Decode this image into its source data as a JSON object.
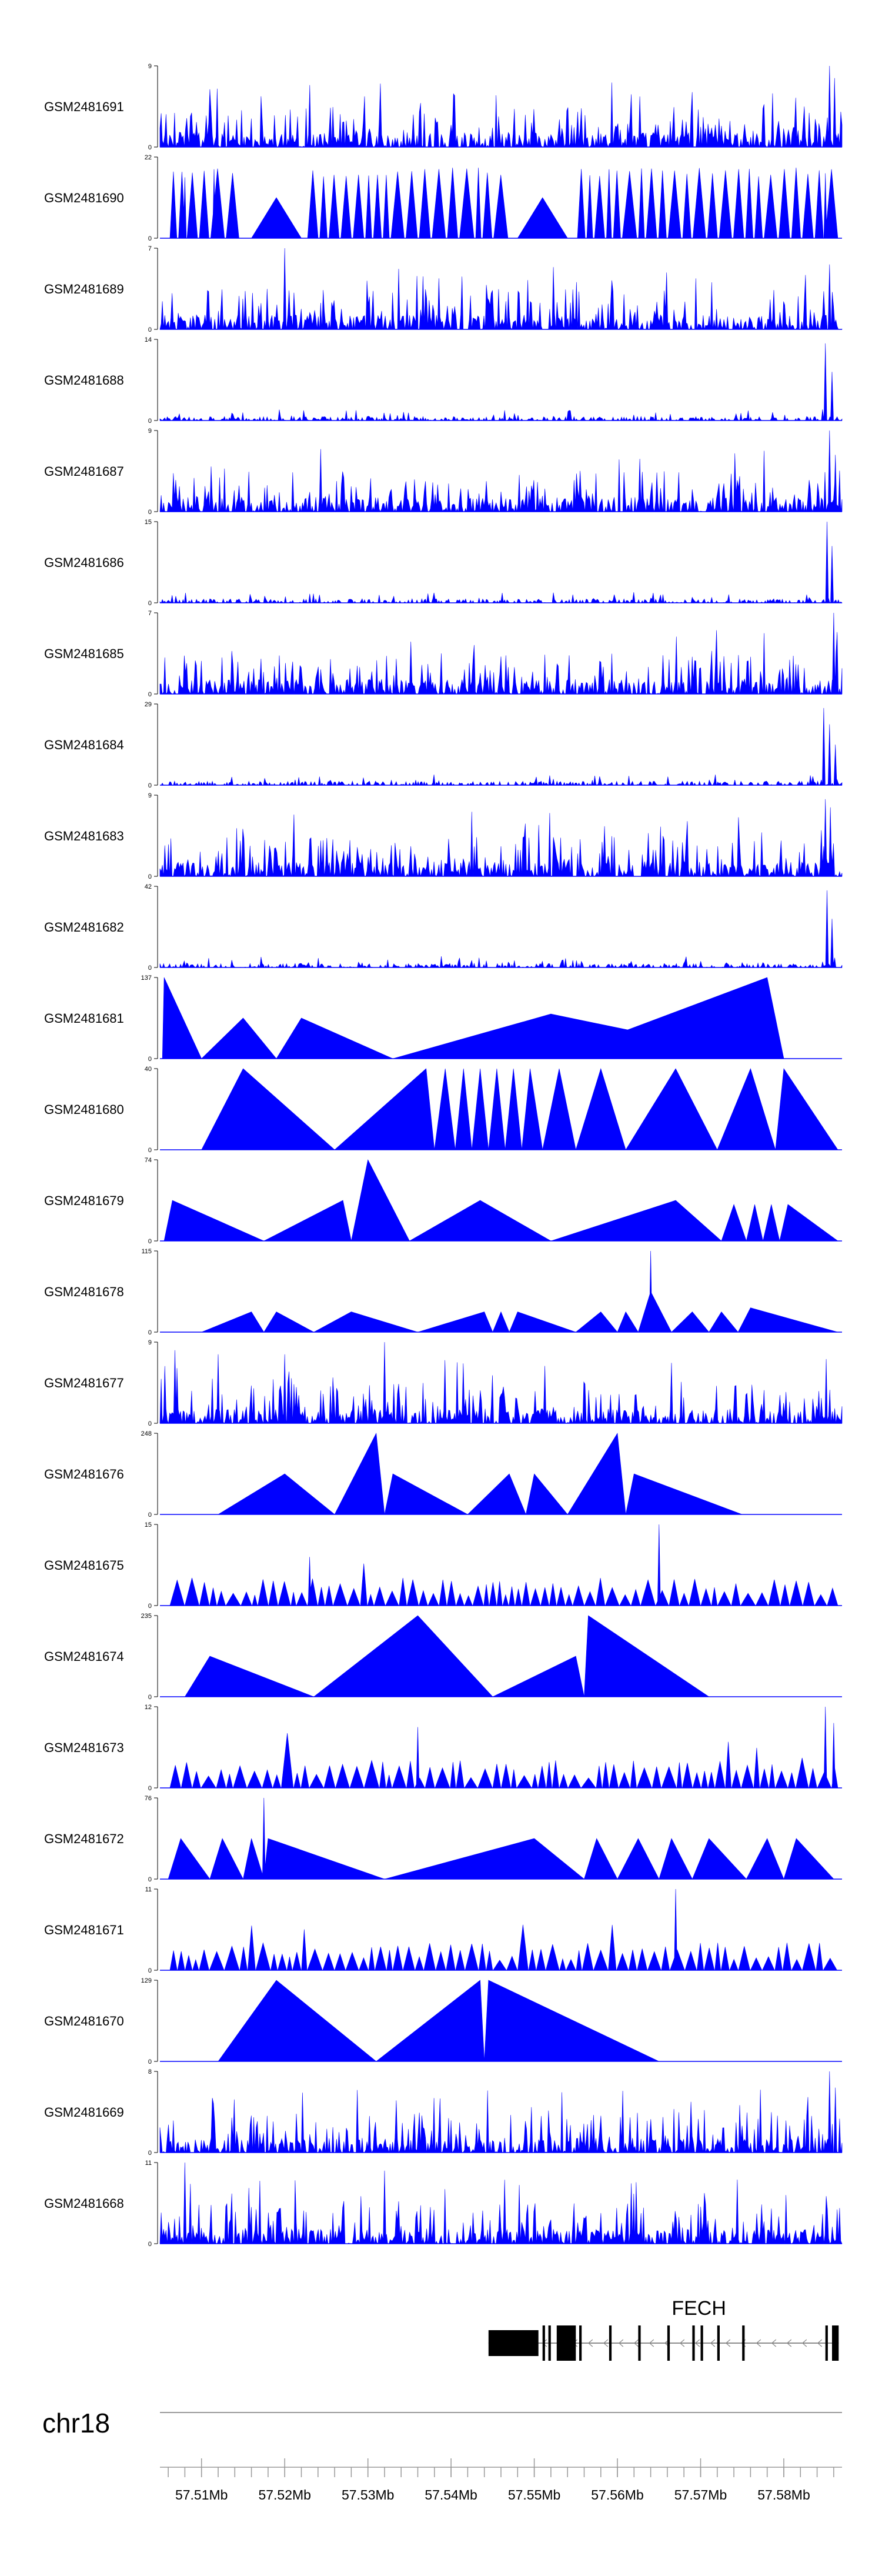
{
  "chart_data": {
    "type": "area",
    "x_unit": "Mb",
    "x_range": [
      57.505,
      57.587
    ],
    "fill_color": "#0000ff",
    "tracks": [
      {
        "name": "GSM2481691",
        "ymax": 9,
        "style": "dense",
        "seed": 11,
        "spikes": [
          [
            57.5855,
            1.0
          ],
          [
            57.5861,
            0.85
          ]
        ]
      },
      {
        "name": "GSM2481690",
        "ymax": 22,
        "style": "tri",
        "seed": 12,
        "spikes": [
          [
            57.508,
            0.75
          ],
          [
            57.5115,
            0.85
          ],
          [
            57.559,
            0.85
          ],
          [
            57.585,
            0.8
          ]
        ],
        "gaps": [
          [
            57.516,
            57.522
          ],
          [
            57.548,
            57.554
          ]
        ]
      },
      {
        "name": "GSM2481689",
        "ymax": 7,
        "style": "dense",
        "seed": 13,
        "spikes": [
          [
            57.52,
            1.0
          ],
          [
            57.5855,
            0.8
          ]
        ]
      },
      {
        "name": "GSM2481688",
        "ymax": 14,
        "style": "low",
        "seed": 14,
        "spikes": [
          [
            57.585,
            0.95
          ],
          [
            57.5858,
            0.6
          ]
        ]
      },
      {
        "name": "GSM2481687",
        "ymax": 9,
        "style": "dense",
        "seed": 15,
        "spikes": [
          [
            57.5855,
            1.0
          ],
          [
            57.5862,
            0.7
          ]
        ]
      },
      {
        "name": "GSM2481686",
        "ymax": 15,
        "style": "low",
        "seed": 16,
        "spikes": [
          [
            57.5852,
            1.0
          ],
          [
            57.5858,
            0.7
          ]
        ]
      },
      {
        "name": "GSM2481685",
        "ymax": 7,
        "style": "dense",
        "seed": 17,
        "spikes": [
          [
            57.586,
            1.0
          ]
        ]
      },
      {
        "name": "GSM2481684",
        "ymax": 29,
        "style": "low",
        "seed": 18,
        "spikes": [
          [
            57.5848,
            0.95
          ],
          [
            57.5855,
            0.75
          ],
          [
            57.5862,
            0.5
          ]
        ]
      },
      {
        "name": "GSM2481683",
        "ymax": 9,
        "style": "dense",
        "seed": 19,
        "spikes": [
          [
            57.585,
            0.95
          ],
          [
            57.5856,
            0.85
          ]
        ]
      },
      {
        "name": "GSM2481682",
        "ymax": 42,
        "style": "low",
        "seed": 20,
        "spikes": [
          [
            57.5852,
            0.95
          ],
          [
            57.5858,
            0.6
          ]
        ]
      },
      {
        "name": "GSM2481681",
        "ymax": 137,
        "style": "sparse",
        "seed": 21,
        "peaks": [
          [
            57.5053,
            57.5055,
            57.51,
            1.0
          ],
          [
            57.51,
            57.515,
            57.519,
            0.5
          ],
          [
            57.519,
            57.522,
            57.533,
            0.5
          ],
          [
            57.533,
            57.552,
            57.578,
            0.55
          ],
          [
            57.552,
            57.578,
            57.58,
            1.0
          ]
        ]
      },
      {
        "name": "GSM2481680",
        "ymax": 40,
        "style": "sparse",
        "seed": 22,
        "peaks": [
          [
            57.51,
            57.515,
            57.526,
            1.0
          ],
          [
            57.526,
            57.537,
            57.538,
            1.0
          ],
          [
            57.538,
            57.5393,
            57.5405,
            1.0
          ],
          [
            57.5405,
            57.5415,
            57.5425,
            1.0
          ],
          [
            57.5425,
            57.5435,
            57.5445,
            1.0
          ],
          [
            57.5445,
            57.5455,
            57.5465,
            1.0
          ],
          [
            57.5465,
            57.5475,
            57.5485,
            1.0
          ],
          [
            57.5485,
            57.5495,
            57.551,
            1.0
          ],
          [
            57.551,
            57.553,
            57.555,
            1.0
          ],
          [
            57.555,
            57.558,
            57.561,
            1.0
          ],
          [
            57.561,
            57.567,
            57.572,
            1.0
          ],
          [
            57.572,
            57.576,
            57.579,
            1.0
          ],
          [
            57.579,
            57.58,
            57.5865,
            1.0
          ]
        ]
      },
      {
        "name": "GSM2481679",
        "ymax": 74,
        "style": "sparse",
        "seed": 23,
        "peaks": [
          [
            57.5055,
            57.5065,
            57.5175,
            0.5
          ],
          [
            57.5175,
            57.527,
            57.528,
            0.5
          ],
          [
            57.528,
            57.53,
            57.535,
            1.0
          ],
          [
            57.535,
            57.5435,
            57.552,
            0.5
          ],
          [
            57.552,
            57.567,
            57.5725,
            0.5
          ],
          [
            57.5725,
            57.574,
            57.5755,
            0.45
          ],
          [
            57.5755,
            57.5765,
            57.5775,
            0.45
          ],
          [
            57.5775,
            57.5785,
            57.5795,
            0.45
          ],
          [
            57.5795,
            57.5805,
            57.5865,
            0.45
          ]
        ]
      },
      {
        "name": "GSM2481678",
        "ymax": 115,
        "style": "sparse",
        "seed": 24,
        "peaks": [
          [
            57.51,
            57.516,
            57.5175,
            0.25
          ],
          [
            57.5175,
            57.519,
            57.5235,
            0.25
          ],
          [
            57.5235,
            57.528,
            57.536,
            0.25
          ],
          [
            57.536,
            57.544,
            57.545,
            0.25
          ],
          [
            57.545,
            57.546,
            57.547,
            0.25
          ],
          [
            57.547,
            57.548,
            57.555,
            0.25
          ],
          [
            57.555,
            57.558,
            57.56,
            0.25
          ],
          [
            57.56,
            57.561,
            57.5625,
            0.25
          ],
          [
            57.5625,
            57.564,
            57.5665,
            0.5
          ],
          [
            57.5665,
            57.569,
            57.571,
            0.25
          ],
          [
            57.571,
            57.5725,
            57.5745,
            0.25
          ],
          [
            57.5745,
            57.576,
            57.5865,
            0.3
          ]
        ],
        "spikes": [
          [
            57.564,
            1.0
          ]
        ]
      },
      {
        "name": "GSM2481677",
        "ymax": 9,
        "style": "dense",
        "seed": 25,
        "spikes": [
          [
            57.5068,
            0.9
          ],
          [
            57.512,
            0.85
          ],
          [
            57.52,
            0.85
          ],
          [
            57.532,
            1.0
          ]
        ]
      },
      {
        "name": "GSM2481676",
        "ymax": 248,
        "style": "sparse",
        "seed": 26,
        "peaks": [
          [
            57.512,
            57.52,
            57.526,
            0.5
          ],
          [
            57.526,
            57.531,
            57.532,
            1.0
          ],
          [
            57.532,
            57.533,
            57.542,
            0.5
          ],
          [
            57.542,
            57.547,
            57.549,
            0.5
          ],
          [
            57.549,
            57.55,
            57.554,
            0.5
          ],
          [
            57.554,
            57.56,
            57.561,
            1.0
          ],
          [
            57.561,
            57.562,
            57.575,
            0.5
          ]
        ]
      },
      {
        "name": "GSM2481675",
        "ymax": 15,
        "style": "tri",
        "seed": 27,
        "spikes": [
          [
            57.523,
            0.6
          ],
          [
            57.565,
            1.0
          ]
        ]
      },
      {
        "name": "GSM2481674",
        "ymax": 235,
        "style": "sparse",
        "seed": 28,
        "peaks": [
          [
            57.508,
            57.511,
            57.5235,
            0.5
          ],
          [
            57.5235,
            57.536,
            57.545,
            1.0
          ],
          [
            57.545,
            57.555,
            57.556,
            0.5
          ],
          [
            57.556,
            57.5565,
            57.571,
            1.0
          ]
        ]
      },
      {
        "name": "GSM2481673",
        "ymax": 12,
        "style": "tri",
        "seed": 29,
        "spikes": [
          [
            57.536,
            0.75
          ],
          [
            57.585,
            1.0
          ],
          [
            57.586,
            0.8
          ]
        ]
      },
      {
        "name": "GSM2481672",
        "ymax": 76,
        "style": "sparse",
        "seed": 30,
        "peaks": [
          [
            57.506,
            57.5075,
            57.511,
            0.5
          ],
          [
            57.511,
            57.5125,
            57.515,
            0.5
          ],
          [
            57.515,
            57.516,
            57.5175,
            0.5
          ],
          [
            57.5175,
            57.518,
            57.532,
            0.5
          ],
          [
            57.532,
            57.55,
            57.556,
            0.5
          ],
          [
            57.556,
            57.5575,
            57.56,
            0.5
          ],
          [
            57.56,
            57.5625,
            57.565,
            0.5
          ],
          [
            57.565,
            57.5665,
            57.569,
            0.5
          ],
          [
            57.569,
            57.571,
            57.5755,
            0.5
          ],
          [
            57.5755,
            57.578,
            57.58,
            0.5
          ],
          [
            57.58,
            57.5815,
            57.586,
            0.5
          ]
        ],
        "spikes": [
          [
            57.5175,
            1.0
          ]
        ]
      },
      {
        "name": "GSM2481671",
        "ymax": 11,
        "style": "tri",
        "seed": 31,
        "spikes": [
          [
            57.567,
            1.0
          ]
        ]
      },
      {
        "name": "GSM2481670",
        "ymax": 129,
        "style": "sparse",
        "seed": 32,
        "peaks": [
          [
            57.512,
            57.519,
            57.531,
            1.0
          ],
          [
            57.531,
            57.5435,
            57.544,
            1.0
          ],
          [
            57.544,
            57.5445,
            57.565,
            1.0
          ]
        ]
      },
      {
        "name": "GSM2481669",
        "ymax": 8,
        "style": "dense",
        "seed": 33,
        "spikes": [
          [
            57.5855,
            1.0
          ],
          [
            57.5862,
            0.8
          ]
        ]
      },
      {
        "name": "GSM2481668",
        "ymax": 11,
        "style": "dense",
        "seed": 34,
        "spikes": [
          [
            57.508,
            1.0
          ],
          [
            57.532,
            0.9
          ]
        ]
      }
    ],
    "gene": {
      "name": "FECH",
      "strand": "-",
      "start": 57.5445,
      "end": 57.5866,
      "exons": [
        [
          57.5445,
          57.5505
        ],
        [
          57.551,
          57.5513
        ],
        [
          57.5517,
          57.552
        ],
        [
          57.5527,
          57.555
        ],
        [
          57.5554,
          57.5557
        ],
        [
          57.559,
          57.5593
        ],
        [
          57.5625,
          57.5628
        ],
        [
          57.566,
          57.5663
        ],
        [
          57.569,
          57.5693
        ],
        [
          57.57,
          57.5703
        ],
        [
          57.572,
          57.5723
        ],
        [
          57.575,
          57.5753
        ],
        [
          57.585,
          57.5853
        ],
        [
          57.5858,
          57.5866
        ]
      ]
    },
    "axis": {
      "chromosome": "chr18",
      "major_ticks": [
        57.51,
        57.52,
        57.53,
        57.54,
        57.55,
        57.56,
        57.57,
        57.58
      ],
      "tick_labels": [
        "57.51Mb",
        "57.52Mb",
        "57.53Mb",
        "57.54Mb",
        "57.55Mb",
        "57.56Mb",
        "57.57Mb",
        "57.58Mb"
      ],
      "minor_step": 0.002
    }
  }
}
